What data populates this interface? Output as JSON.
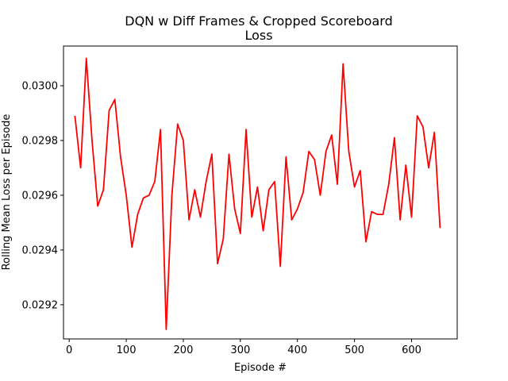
{
  "chart_data": {
    "type": "line",
    "title_line1": "DQN w Diff Frames & Cropped Scoreboard",
    "title_line2": "Loss",
    "xlabel": "Episode #",
    "ylabel": "Rolling Mean Loss per Episode",
    "xlim": [
      -10,
      680
    ],
    "ylim": [
      0.029075,
      0.030145
    ],
    "x_ticks": [
      0,
      100,
      200,
      300,
      400,
      500,
      600
    ],
    "x_tick_labels": [
      "0",
      "100",
      "200",
      "300",
      "400",
      "500",
      "600"
    ],
    "y_ticks": [
      0.0292,
      0.0294,
      0.0296,
      0.0298,
      0.03
    ],
    "y_tick_labels": [
      "0.0292",
      "0.0294",
      "0.0296",
      "0.0298",
      "0.0300"
    ],
    "grid": false,
    "legend": "none",
    "series": [
      {
        "color": "#ff0000",
        "x": [
          10,
          20,
          30,
          40,
          50,
          60,
          70,
          80,
          90,
          100,
          110,
          120,
          130,
          140,
          150,
          160,
          170,
          180,
          190,
          200,
          210,
          220,
          230,
          240,
          250,
          260,
          270,
          280,
          290,
          300,
          310,
          320,
          330,
          340,
          350,
          360,
          370,
          380,
          390,
          400,
          410,
          420,
          430,
          440,
          450,
          460,
          470,
          480,
          490,
          500,
          510,
          520,
          530,
          540,
          550,
          560,
          570,
          580,
          590,
          600,
          610,
          620,
          630,
          640,
          650
        ],
        "y": [
          0.02989,
          0.0297,
          0.0301,
          0.0298,
          0.02956,
          0.02962,
          0.02991,
          0.02995,
          0.02974,
          0.0296,
          0.02941,
          0.02953,
          0.02959,
          0.0296,
          0.02965,
          0.02984,
          0.02911,
          0.0296,
          0.02986,
          0.0298,
          0.02951,
          0.02962,
          0.02952,
          0.02965,
          0.02975,
          0.02935,
          0.02944,
          0.02975,
          0.02955,
          0.02946,
          0.02984,
          0.02952,
          0.02963,
          0.02947,
          0.02962,
          0.02965,
          0.02934,
          0.02974,
          0.02951,
          0.02955,
          0.02961,
          0.02976,
          0.02973,
          0.0296,
          0.02976,
          0.02982,
          0.02964,
          0.03008,
          0.02976,
          0.02963,
          0.02969,
          0.02943,
          0.02954,
          0.02953,
          0.02953,
          0.02964,
          0.02981,
          0.02951,
          0.02971,
          0.02952,
          0.02989,
          0.02985,
          0.0297,
          0.02983,
          0.02948
        ]
      }
    ]
  }
}
